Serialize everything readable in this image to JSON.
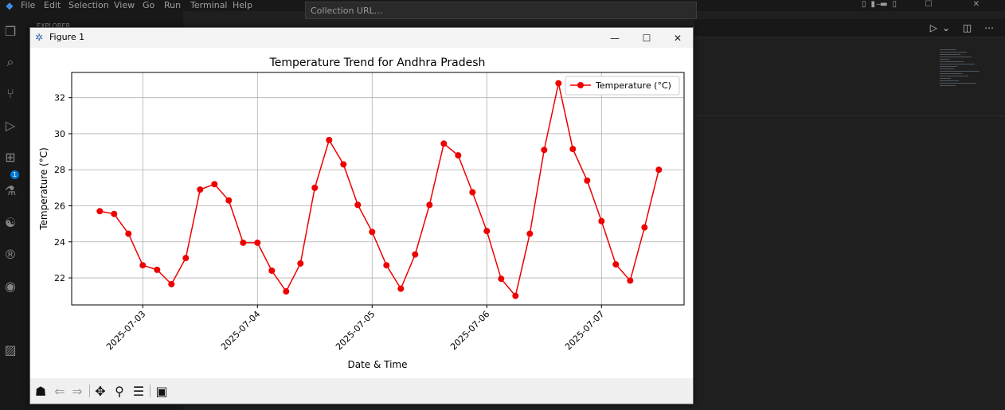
{
  "vscode": {
    "menu": [
      "File",
      "Edit",
      "Selection",
      "View",
      "Go",
      "Run",
      "Terminal",
      "Help"
    ],
    "command_input_placeholder": "Collection URL...",
    "explorer_label": "EXPLORER",
    "badge_count": "1"
  },
  "figure": {
    "window_title": "Figure 1",
    "minimize": "—",
    "maximize": "☐",
    "close": "✕"
  },
  "toolbar": {
    "home": "home-icon",
    "back": "back-arrow-icon",
    "forward": "forward-arrow-icon",
    "pan": "pan-icon",
    "zoom": "zoom-icon",
    "configure": "configure-subplots-icon",
    "save": "save-icon"
  },
  "chart_data": {
    "type": "line",
    "title": "Temperature Trend for Andhra Pradesh",
    "xlabel": "Date & Time",
    "ylabel": "Temperature (°C)",
    "x_tick_labels": [
      "2025-07-03",
      "2025-07-04",
      "2025-07-05",
      "2025-07-06",
      "2025-07-07"
    ],
    "x_tick_days": [
      1,
      2,
      3,
      4,
      5
    ],
    "y_ticks": [
      22,
      24,
      26,
      28,
      30,
      32
    ],
    "xlim_days": [
      0.38,
      5.72
    ],
    "ylim": [
      20.5,
      33.4
    ],
    "grid": true,
    "legend_placement": "top-right",
    "color": "#ee0000",
    "series": [
      {
        "name": "Temperature (°C)",
        "days": [
          0.625,
          0.75,
          0.875,
          1.0,
          1.125,
          1.25,
          1.375,
          1.5,
          1.625,
          1.75,
          1.875,
          2.0,
          2.125,
          2.25,
          2.375,
          2.5,
          2.625,
          2.75,
          2.875,
          3.0,
          3.125,
          3.25,
          3.375,
          3.5,
          3.625,
          3.75,
          3.875,
          4.0,
          4.125,
          4.25,
          4.375,
          4.5,
          4.625,
          4.75,
          4.875,
          5.0,
          5.125,
          5.25,
          5.375,
          5.5
        ],
        "values": [
          25.7,
          25.55,
          24.45,
          22.7,
          22.45,
          21.65,
          23.1,
          26.9,
          27.2,
          26.3,
          23.95,
          23.95,
          22.4,
          21.25,
          22.8,
          27.0,
          29.65,
          28.3,
          26.05,
          24.55,
          22.7,
          21.4,
          23.3,
          26.05,
          29.45,
          28.8,
          26.75,
          24.6,
          21.95,
          21.0,
          24.45,
          29.1,
          32.8,
          29.15,
          27.4,
          25.15,
          22.75,
          21.85,
          24.8,
          28.0
        ]
      }
    ]
  }
}
